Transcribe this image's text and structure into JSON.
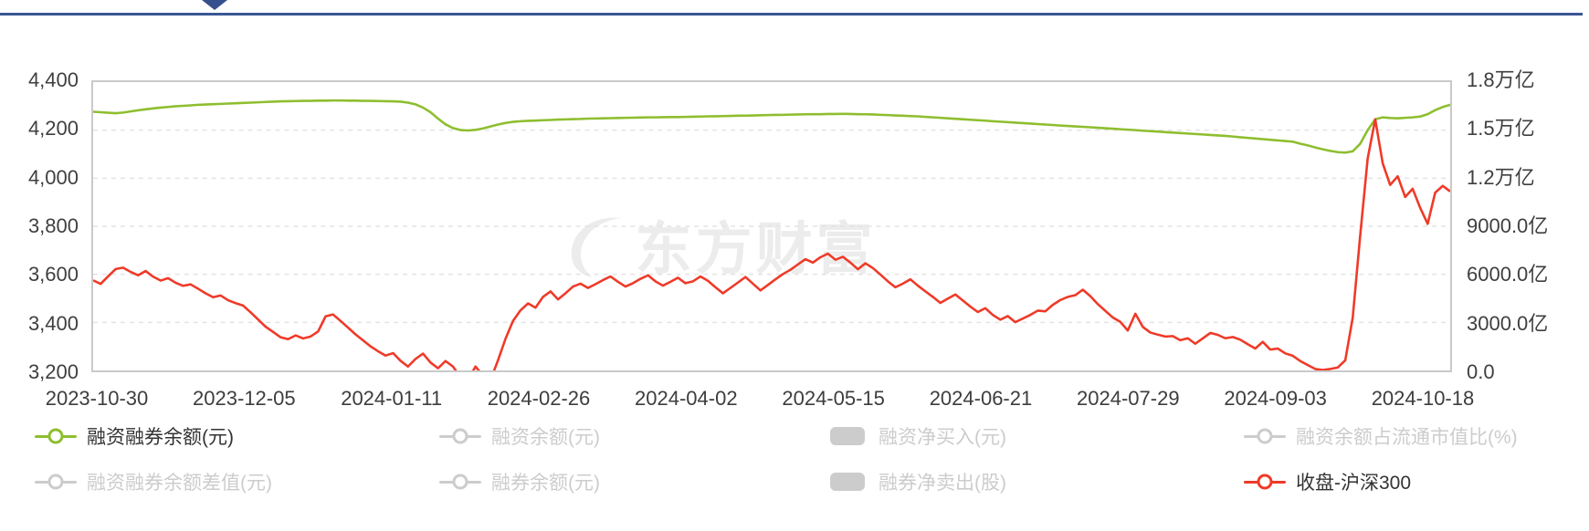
{
  "header": {
    "divider_color": "#3a5694",
    "arrow_color": "#35508c"
  },
  "chart_data": {
    "type": "line",
    "watermark": "东方财富",
    "grid": true,
    "x_labels": [
      "2023-10-30",
      "2023-12-05",
      "2024-01-11",
      "2024-02-26",
      "2024-04-02",
      "2024-05-15",
      "2024-06-21",
      "2024-07-29",
      "2024-09-03",
      "2024-10-18"
    ],
    "left_axis": {
      "labels": [
        "4,400",
        "4,200",
        "4,000",
        "3,800",
        "3,600",
        "3,400",
        "3,200"
      ],
      "min": 3200,
      "max": 4400
    },
    "right_axis": {
      "labels": [
        "1.8万亿",
        "1.5万亿",
        "1.2万亿",
        "9000.0亿",
        "6000.0亿",
        "3000.0亿",
        "0.0"
      ],
      "min": 0,
      "max": 1.8,
      "unit": "万亿"
    },
    "series": [
      {
        "name": "融资融券余额(元)",
        "axis": "right",
        "color": "#8ebe2f",
        "unit": "万亿",
        "values": [
          1.615,
          1.612,
          1.609,
          1.606,
          1.61,
          1.617,
          1.624,
          1.63,
          1.636,
          1.641,
          1.645,
          1.649,
          1.652,
          1.655,
          1.658,
          1.66,
          1.662,
          1.664,
          1.666,
          1.668,
          1.67,
          1.672,
          1.674,
          1.676,
          1.678,
          1.68,
          1.681,
          1.682,
          1.683,
          1.683,
          1.684,
          1.684,
          1.685,
          1.685,
          1.684,
          1.684,
          1.683,
          1.683,
          1.682,
          1.681,
          1.68,
          1.678,
          1.672,
          1.661,
          1.641,
          1.612,
          1.572,
          1.536,
          1.513,
          1.501,
          1.498,
          1.502,
          1.511,
          1.523,
          1.535,
          1.545,
          1.552,
          1.556,
          1.558,
          1.56,
          1.562,
          1.564,
          1.566,
          1.567,
          1.569,
          1.57,
          1.572,
          1.573,
          1.574,
          1.575,
          1.576,
          1.577,
          1.578,
          1.579,
          1.58,
          1.58,
          1.581,
          1.582,
          1.582,
          1.583,
          1.584,
          1.585,
          1.586,
          1.587,
          1.588,
          1.589,
          1.59,
          1.591,
          1.592,
          1.593,
          1.594,
          1.595,
          1.596,
          1.597,
          1.598,
          1.599,
          1.6,
          1.6,
          1.601,
          1.601,
          1.602,
          1.601,
          1.6,
          1.599,
          1.598,
          1.596,
          1.594,
          1.592,
          1.59,
          1.588,
          1.586,
          1.583,
          1.58,
          1.577,
          1.574,
          1.571,
          1.568,
          1.565,
          1.562,
          1.559,
          1.556,
          1.553,
          1.55,
          1.547,
          1.544,
          1.541,
          1.538,
          1.535,
          1.532,
          1.529,
          1.526,
          1.523,
          1.521,
          1.518,
          1.515,
          1.512,
          1.509,
          1.506,
          1.503,
          1.5,
          1.497,
          1.494,
          1.491,
          1.488,
          1.485,
          1.482,
          1.479,
          1.476,
          1.473,
          1.47,
          1.467,
          1.464,
          1.46,
          1.456,
          1.452,
          1.448,
          1.444,
          1.44,
          1.436,
          1.432,
          1.428,
          1.415,
          1.405,
          1.392,
          1.381,
          1.371,
          1.363,
          1.36,
          1.368,
          1.415,
          1.5,
          1.568,
          1.58,
          1.576,
          1.574,
          1.577,
          1.58,
          1.585,
          1.6,
          1.625,
          1.645,
          1.658
        ]
      },
      {
        "name": "收盘-沪深300",
        "axis": "left",
        "color": "#ef3a28",
        "values": [
          3575,
          3560,
          3592,
          3622,
          3628,
          3610,
          3596,
          3614,
          3590,
          3574,
          3584,
          3565,
          3552,
          3558,
          3540,
          3521,
          3505,
          3512,
          3492,
          3480,
          3470,
          3442,
          3412,
          3382,
          3360,
          3338,
          3330,
          3346,
          3333,
          3341,
          3362,
          3425,
          3433,
          3406,
          3378,
          3350,
          3325,
          3300,
          3280,
          3262,
          3272,
          3240,
          3216,
          3248,
          3270,
          3233,
          3209,
          3239,
          3216,
          3171,
          3162,
          3216,
          3179,
          3160,
          3242,
          3332,
          3406,
          3450,
          3479,
          3461,
          3506,
          3529,
          3496,
          3521,
          3549,
          3561,
          3543,
          3559,
          3576,
          3591,
          3569,
          3549,
          3563,
          3581,
          3596,
          3571,
          3553,
          3569,
          3586,
          3563,
          3571,
          3591,
          3573,
          3546,
          3521,
          3543,
          3566,
          3589,
          3561,
          3533,
          3556,
          3579,
          3601,
          3619,
          3641,
          3663,
          3649,
          3671,
          3686,
          3661,
          3673,
          3649,
          3621,
          3646,
          3626,
          3599,
          3571,
          3546,
          3561,
          3579,
          3553,
          3529,
          3506,
          3481,
          3499,
          3516,
          3491,
          3466,
          3443,
          3459,
          3431,
          3411,
          3426,
          3401,
          3416,
          3431,
          3449,
          3446,
          3473,
          3493,
          3506,
          3513,
          3536,
          3509,
          3476,
          3448,
          3420,
          3402,
          3366,
          3436,
          3381,
          3358,
          3349,
          3341,
          3343,
          3326,
          3334,
          3311,
          3333,
          3356,
          3348,
          3334,
          3339,
          3328,
          3309,
          3291,
          3319,
          3287,
          3291,
          3271,
          3261,
          3239,
          3222,
          3206,
          3202,
          3206,
          3212,
          3242,
          3420,
          3762,
          4082,
          4245,
          4062,
          3972,
          4008,
          3922,
          3956,
          3876,
          3810,
          3940,
          3968,
          3945
        ]
      }
    ],
    "gridline_color": "#e3e3e3",
    "border_color": "#c9c9c9"
  },
  "legend": {
    "inactive_color": "#cccccc",
    "active_text_color": "#333333",
    "items": [
      {
        "label": "融资融券余额(元)",
        "marker": "line",
        "active": true,
        "color": "#8ebe2f"
      },
      {
        "label": "融资余额(元)",
        "marker": "line",
        "active": false,
        "color": "#cccccc"
      },
      {
        "label": "融资净买入(元)",
        "marker": "roundRect",
        "active": false,
        "color": "#cccccc"
      },
      {
        "label": "融资余额占流通市值比(%)",
        "marker": "line",
        "active": false,
        "color": "#cccccc"
      },
      {
        "label": "融资融券余额差值(元)",
        "marker": "line",
        "active": false,
        "color": "#cccccc"
      },
      {
        "label": "融券余额(元)",
        "marker": "line",
        "active": false,
        "color": "#cccccc"
      },
      {
        "label": "融券净卖出(股)",
        "marker": "roundRect",
        "active": false,
        "color": "#cccccc"
      },
      {
        "label": "收盘-沪深300",
        "marker": "line",
        "active": true,
        "color": "#ef3a28"
      }
    ]
  }
}
